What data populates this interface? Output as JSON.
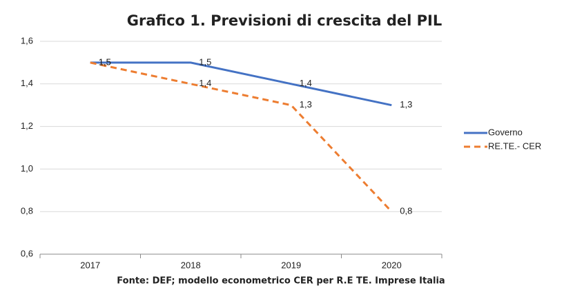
{
  "chart_data": {
    "type": "line",
    "title": "Grafico 1. Previsioni di crescita del PIL",
    "source": "Fonte: DEF; modello econometrico CER per R.E TE. Imprese Italia",
    "categories": [
      "2017",
      "2018",
      "2019",
      "2020"
    ],
    "series": [
      {
        "name": "Governo",
        "color": "#4472c4",
        "dashed": false,
        "values": [
          1.5,
          1.5,
          1.4,
          1.3
        ],
        "value_labels": [
          "1,5",
          "1,5",
          "1,4",
          "1,3"
        ]
      },
      {
        "name": "RE.TE.- CER",
        "color": "#ed7d31",
        "dashed": true,
        "values": [
          1.5,
          1.4,
          1.3,
          0.8
        ],
        "value_labels": [
          "1,5",
          "1,4",
          "1,3",
          "0,8"
        ]
      }
    ],
    "ylim": [
      0.6,
      1.6
    ],
    "yticks": [
      {
        "value": 0.6,
        "label": "0,6"
      },
      {
        "value": 0.8,
        "label": "0,8"
      },
      {
        "value": 1.0,
        "label": "1,0"
      },
      {
        "value": 1.2,
        "label": "1,2"
      },
      {
        "value": 1.4,
        "label": "1,4"
      },
      {
        "value": 1.6,
        "label": "1,6"
      }
    ],
    "grid": true,
    "legend": "right"
  }
}
